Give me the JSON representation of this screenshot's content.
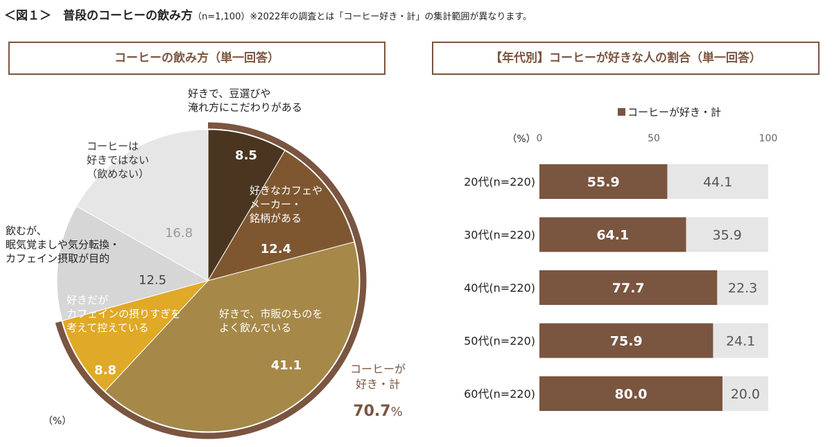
{
  "header": {
    "title": "＜図１＞　普段のコーヒーの飲み方",
    "note": "（n=1,100）※2022年の調査とは「コーヒー好き・計」の集計範囲が異なります。"
  },
  "chart_data": [
    {
      "type": "pie",
      "title": "コーヒーの飲み方（単一回答）",
      "unit_label": "（%）",
      "slices": [
        {
          "label": "好きで、豆選びや\n淹れ方にこだわりがある",
          "value": 8.5,
          "color": "#4a3620"
        },
        {
          "label": "好きなカフェや\nメーカー・\n銘柄がある",
          "value": 12.4,
          "color": "#7e5731"
        },
        {
          "label": "好きで、市販のものを\nよく飲んでいる",
          "value": 41.1,
          "color": "#a68848"
        },
        {
          "label": "好きだが\nカフェインの摂りすぎを\n考えて控えている",
          "value": 8.8,
          "color": "#e0a927"
        },
        {
          "label": "飲むが、\n眠気覚ましや気分転換・\nカフェイン摂取が目的",
          "value": 12.5,
          "color": "#d6d6d6"
        },
        {
          "label": "コーヒーは\n好きではない\n（飲めない）",
          "value": 16.8,
          "color": "#e6e6e6"
        }
      ],
      "annotation": {
        "label": "コーヒーが\n好き・計",
        "value": "70.7",
        "unit": "%",
        "color": "#7a5540"
      }
    },
    {
      "type": "bar",
      "stacked": true,
      "orientation": "horizontal",
      "title": "【年代別】コーヒーが好きな人の割合（単一回答）",
      "unit_label": "（%）",
      "xlim": [
        0,
        100
      ],
      "ticks": [
        "0",
        "50",
        "100"
      ],
      "legend": {
        "label": "コーヒーが好き・計",
        "position": "top"
      },
      "categories": [
        "20代(n=220)",
        "30代(n=220)",
        "40代(n=220)",
        "50代(n=220)",
        "60代(n=220)"
      ],
      "series": [
        {
          "name": "コーヒーが好き・計",
          "values": [
            55.9,
            64.1,
            77.7,
            75.9,
            80.0
          ],
          "color": "#7a5540"
        },
        {
          "values": [
            44.1,
            35.9,
            22.3,
            24.1,
            20.0
          ],
          "color": "#e6e6e6"
        }
      ]
    }
  ]
}
